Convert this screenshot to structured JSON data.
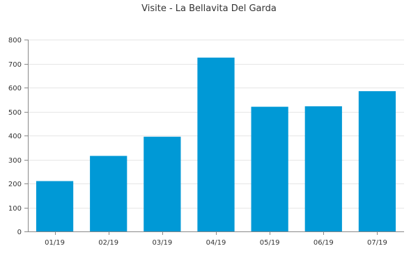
{
  "chart_data": {
    "type": "bar",
    "title": "Visite - La Bellavita Del Garda",
    "xlabel": "",
    "ylabel": "",
    "categories": [
      "01/19",
      "02/19",
      "03/19",
      "04/19",
      "05/19",
      "06/19",
      "07/19"
    ],
    "values": [
      210,
      315,
      395,
      725,
      520,
      522,
      585
    ],
    "ylim": [
      0,
      800
    ],
    "yticks": [
      0,
      100,
      200,
      300,
      400,
      500,
      600,
      700,
      800
    ],
    "grid": true,
    "legend": "none",
    "bar_color": "#0099d6"
  }
}
